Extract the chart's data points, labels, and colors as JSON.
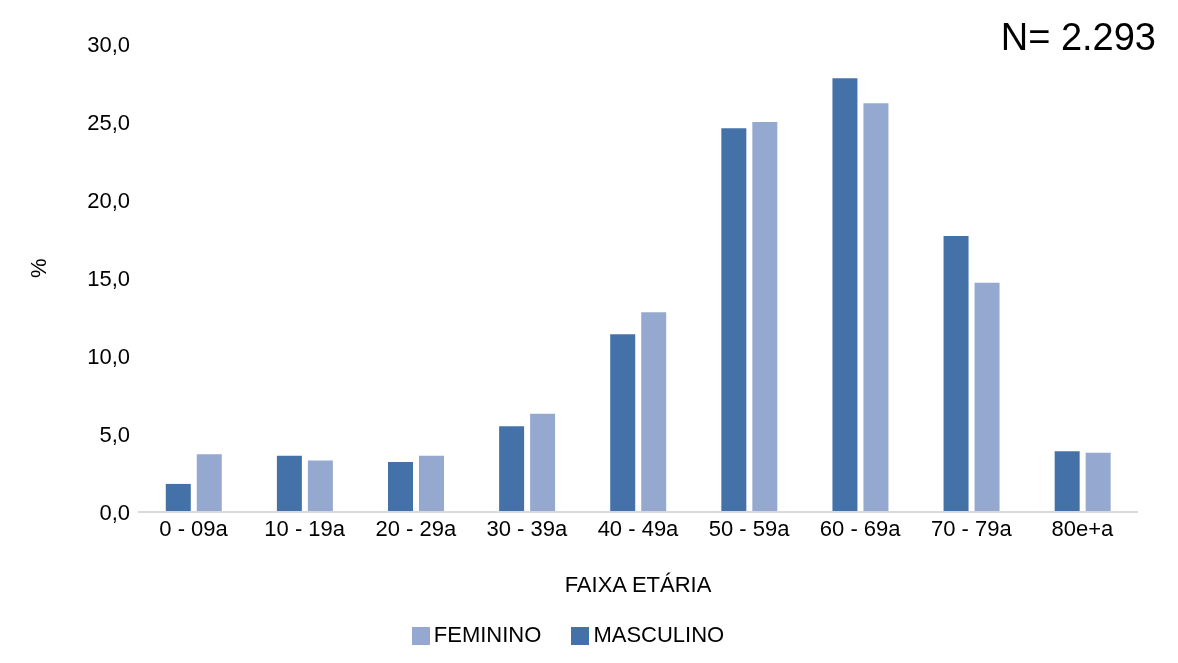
{
  "chart_data": {
    "type": "bar",
    "xlabel": "FAIXA ETÁRIA",
    "ylabel": "%",
    "annotations": [
      "N= 2.293"
    ],
    "categories": [
      "0  - 09a",
      "10 - 19a",
      "20 - 29a",
      "30 - 39a",
      "40 - 49a",
      "50 - 59a",
      "60 - 69a",
      "70 - 79a",
      "80e+a"
    ],
    "series": [
      {
        "name": "MASCULINO",
        "color": "#4472a8",
        "values": [
          1.8,
          3.6,
          3.2,
          5.5,
          11.4,
          24.6,
          27.8,
          17.7,
          3.9
        ]
      },
      {
        "name": "FEMININO",
        "color": "#95a9d0",
        "values": [
          3.7,
          3.3,
          3.6,
          6.3,
          12.8,
          25.0,
          26.2,
          14.7,
          3.8
        ]
      }
    ],
    "ylim": [
      0,
      30
    ],
    "yticks": [
      {
        "value": 0,
        "label": "0,0"
      },
      {
        "value": 5,
        "label": "5,0"
      },
      {
        "value": 10,
        "label": "10,0"
      },
      {
        "value": 15,
        "label": "15,0"
      },
      {
        "value": 20,
        "label": "20,0"
      },
      {
        "value": 25,
        "label": "25,0"
      },
      {
        "value": 30,
        "label": "30,0"
      }
    ],
    "grid": false,
    "legend": "bottom"
  }
}
